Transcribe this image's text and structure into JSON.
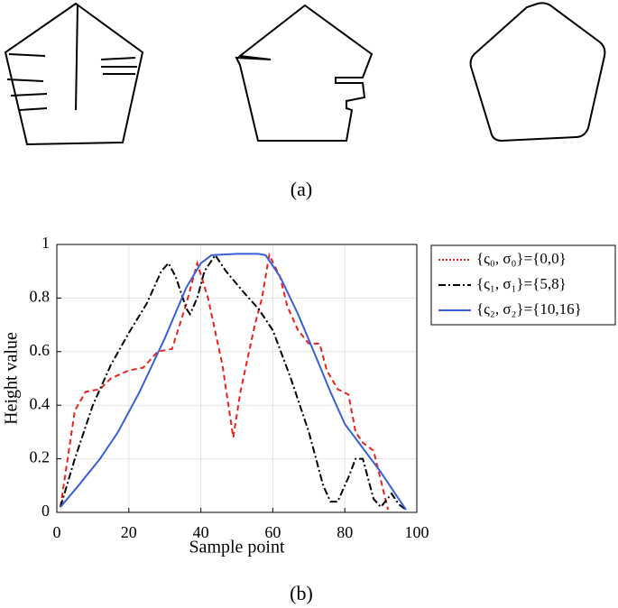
{
  "captions": {
    "a": "(a)",
    "b": "(b)"
  },
  "chart_data": {
    "type": "line",
    "xlabel": "Sample point",
    "ylabel": "Height value",
    "xlim": [
      0,
      100
    ],
    "xticks": [
      0,
      20,
      40,
      60,
      80,
      100
    ],
    "ylim": [
      0,
      1
    ],
    "yticks": [
      0,
      0.2,
      0.4,
      0.6,
      0.8,
      1
    ],
    "grid": true,
    "legend": "outside-right",
    "series": [
      {
        "name": "{ς₀, σ₀}={0,0}",
        "color": "#e8231e",
        "linestyle": "dashed",
        "x": [
          1,
          3,
          5,
          8,
          12,
          15,
          20,
          24,
          28,
          32,
          36,
          39,
          42,
          46,
          49,
          51,
          55,
          57,
          59,
          62,
          64,
          67,
          70,
          73,
          75,
          78,
          81,
          83,
          85,
          88,
          90,
          92
        ],
        "values": [
          0.02,
          0.2,
          0.38,
          0.45,
          0.46,
          0.5,
          0.53,
          0.54,
          0.6,
          0.61,
          0.78,
          0.93,
          0.8,
          0.55,
          0.28,
          0.45,
          0.7,
          0.8,
          0.96,
          0.88,
          0.77,
          0.68,
          0.63,
          0.63,
          0.53,
          0.46,
          0.44,
          0.3,
          0.26,
          0.23,
          0.12,
          0.01
        ]
      },
      {
        "name": "{ς₁, σ₁}={5,8}",
        "color": "#000000",
        "linestyle": "dashdot",
        "x": [
          1,
          5,
          10,
          15,
          20,
          25,
          29,
          31,
          33,
          36,
          37,
          39,
          41,
          44,
          47,
          52,
          56,
          60,
          65,
          70,
          74,
          76,
          78,
          81,
          83,
          85,
          88,
          90,
          93,
          95,
          97
        ],
        "values": [
          0.02,
          0.2,
          0.4,
          0.55,
          0.67,
          0.78,
          0.9,
          0.93,
          0.88,
          0.76,
          0.74,
          0.8,
          0.9,
          0.96,
          0.9,
          0.82,
          0.76,
          0.68,
          0.5,
          0.3,
          0.1,
          0.04,
          0.04,
          0.13,
          0.2,
          0.2,
          0.05,
          0.02,
          0.07,
          0.03,
          0.01
        ]
      },
      {
        "name": "{ς₂, σ₂}={10,16}",
        "color": "#3a5fdc",
        "linestyle": "solid",
        "x": [
          1,
          6,
          12,
          17,
          23,
          30,
          36,
          40,
          43,
          50,
          56,
          58,
          62,
          67,
          72,
          76,
          80,
          85,
          90,
          95,
          97
        ],
        "values": [
          0.02,
          0.1,
          0.2,
          0.3,
          0.45,
          0.65,
          0.84,
          0.93,
          0.96,
          0.965,
          0.965,
          0.96,
          0.88,
          0.74,
          0.58,
          0.45,
          0.33,
          0.24,
          0.15,
          0.05,
          0.01
        ]
      }
    ]
  }
}
